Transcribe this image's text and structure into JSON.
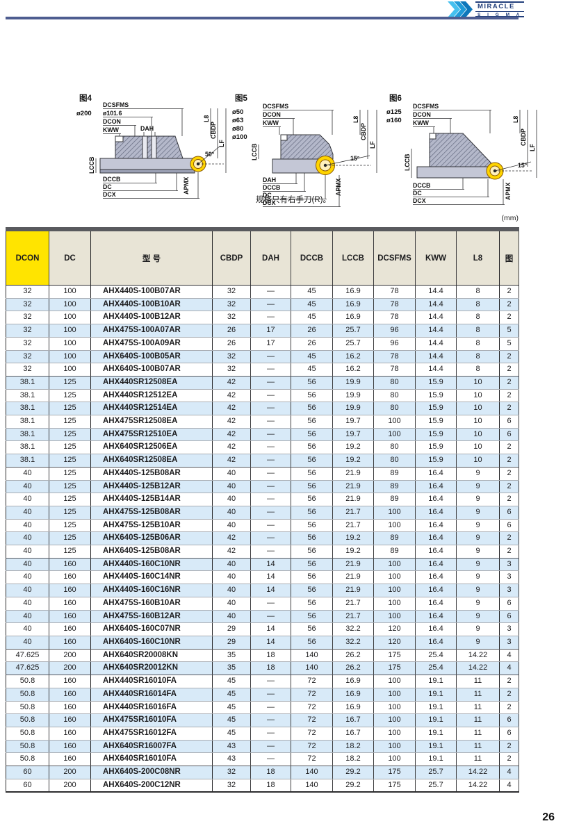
{
  "logo": {
    "name": "MIRACLE",
    "sub": "S I G M A"
  },
  "unit_note": "(mm)",
  "page_number": "26",
  "colors": {
    "header_yellow": "#ffe400",
    "header_beige": "#e8e4d6",
    "row_alt_blue": "#d8eaf8",
    "table_top_bar": "#595a5e",
    "rule_blue": "#4e5d90",
    "logo_blue": "#23407c",
    "insert_yellow": "#ffd400"
  },
  "figures": [
    {
      "title": "图4",
      "diameters": [
        "ø200"
      ],
      "top": [
        "DCSFMS",
        "ø101.6",
        "DCON",
        "KWW"
      ],
      "dah": "DAH",
      "right": [
        "L8",
        "CBDP",
        "LF"
      ],
      "lccb": "LCCB",
      "bottom": [
        "DCCB",
        "DC",
        "DCX"
      ],
      "apmx": "APMX",
      "angle": "50°"
    },
    {
      "title": "图5",
      "diameters": [
        "ø50",
        "ø63",
        "ø80",
        "ø100"
      ],
      "top": [
        "DCSFMS",
        "DCON",
        "KWW"
      ],
      "right": [
        "L8",
        "CBDP",
        "LF"
      ],
      "lccb": "LCCB",
      "bottom": [
        "DAH",
        "DCCB",
        "DC",
        "DCX"
      ],
      "apmx": "APMX",
      "angle": "15°",
      "note": "规格只有右手刀(R)。"
    },
    {
      "title": "图6",
      "diameters": [
        "ø125",
        "ø160"
      ],
      "top": [
        "DCSFMS",
        "DCON",
        "KWW"
      ],
      "right": [
        "L8",
        "CBDP",
        "LF"
      ],
      "lccb": "LCCB",
      "bottom": [
        "DCCB",
        "DC",
        "DCX"
      ],
      "apmx": "APMX",
      "angle": "15°"
    }
  ],
  "table": {
    "headers": [
      "DCON",
      "DC",
      "型 号",
      "CBDP",
      "DAH",
      "DCCB",
      "LCCB",
      "DCSFMS",
      "KWW",
      "L8",
      "图"
    ],
    "group_breaks_after": [
      7,
      14,
      21,
      28,
      30,
      37
    ],
    "rows": [
      [
        "32",
        "100",
        "AHX440S-100B07AR",
        "32",
        "—",
        "45",
        "16.9",
        "78",
        "14.4",
        "8",
        "2"
      ],
      [
        "32",
        "100",
        "AHX440S-100B10AR",
        "32",
        "—",
        "45",
        "16.9",
        "78",
        "14.4",
        "8",
        "2"
      ],
      [
        "32",
        "100",
        "AHX440S-100B12AR",
        "32",
        "—",
        "45",
        "16.9",
        "78",
        "14.4",
        "8",
        "2"
      ],
      [
        "32",
        "100",
        "AHX475S-100A07AR",
        "26",
        "17",
        "26",
        "25.7",
        "96",
        "14.4",
        "8",
        "5"
      ],
      [
        "32",
        "100",
        "AHX475S-100A09AR",
        "26",
        "17",
        "26",
        "25.7",
        "96",
        "14.4",
        "8",
        "5"
      ],
      [
        "32",
        "100",
        "AHX640S-100B05AR",
        "32",
        "—",
        "45",
        "16.2",
        "78",
        "14.4",
        "8",
        "2"
      ],
      [
        "32",
        "100",
        "AHX640S-100B07AR",
        "32",
        "—",
        "45",
        "16.2",
        "78",
        "14.4",
        "8",
        "2"
      ],
      [
        "38.1",
        "125",
        "AHX440SR12508EA",
        "42",
        "—",
        "56",
        "19.9",
        "80",
        "15.9",
        "10",
        "2"
      ],
      [
        "38.1",
        "125",
        "AHX440SR12512EA",
        "42",
        "—",
        "56",
        "19.9",
        "80",
        "15.9",
        "10",
        "2"
      ],
      [
        "38.1",
        "125",
        "AHX440SR12514EA",
        "42",
        "—",
        "56",
        "19.9",
        "80",
        "15.9",
        "10",
        "2"
      ],
      [
        "38.1",
        "125",
        "AHX475SR12508EA",
        "42",
        "—",
        "56",
        "19.7",
        "100",
        "15.9",
        "10",
        "6"
      ],
      [
        "38.1",
        "125",
        "AHX475SR12510EA",
        "42",
        "—",
        "56",
        "19.7",
        "100",
        "15.9",
        "10",
        "6"
      ],
      [
        "38.1",
        "125",
        "AHX640SR12506EA",
        "42",
        "—",
        "56",
        "19.2",
        "80",
        "15.9",
        "10",
        "2"
      ],
      [
        "38.1",
        "125",
        "AHX640SR12508EA",
        "42",
        "—",
        "56",
        "19.2",
        "80",
        "15.9",
        "10",
        "2"
      ],
      [
        "40",
        "125",
        "AHX440S-125B08AR",
        "40",
        "—",
        "56",
        "21.9",
        "89",
        "16.4",
        "9",
        "2"
      ],
      [
        "40",
        "125",
        "AHX440S-125B12AR",
        "40",
        "—",
        "56",
        "21.9",
        "89",
        "16.4",
        "9",
        "2"
      ],
      [
        "40",
        "125",
        "AHX440S-125B14AR",
        "40",
        "—",
        "56",
        "21.9",
        "89",
        "16.4",
        "9",
        "2"
      ],
      [
        "40",
        "125",
        "AHX475S-125B08AR",
        "40",
        "—",
        "56",
        "21.7",
        "100",
        "16.4",
        "9",
        "6"
      ],
      [
        "40",
        "125",
        "AHX475S-125B10AR",
        "40",
        "—",
        "56",
        "21.7",
        "100",
        "16.4",
        "9",
        "6"
      ],
      [
        "40",
        "125",
        "AHX640S-125B06AR",
        "42",
        "—",
        "56",
        "19.2",
        "89",
        "16.4",
        "9",
        "2"
      ],
      [
        "40",
        "125",
        "AHX640S-125B08AR",
        "42",
        "—",
        "56",
        "19.2",
        "89",
        "16.4",
        "9",
        "2"
      ],
      [
        "40",
        "160",
        "AHX440S-160C10NR",
        "40",
        "14",
        "56",
        "21.9",
        "100",
        "16.4",
        "9",
        "3"
      ],
      [
        "40",
        "160",
        "AHX440S-160C14NR",
        "40",
        "14",
        "56",
        "21.9",
        "100",
        "16.4",
        "9",
        "3"
      ],
      [
        "40",
        "160",
        "AHX440S-160C16NR",
        "40",
        "14",
        "56",
        "21.9",
        "100",
        "16.4",
        "9",
        "3"
      ],
      [
        "40",
        "160",
        "AHX475S-160B10AR",
        "40",
        "—",
        "56",
        "21.7",
        "100",
        "16.4",
        "9",
        "6"
      ],
      [
        "40",
        "160",
        "AHX475S-160B12AR",
        "40",
        "—",
        "56",
        "21.7",
        "100",
        "16.4",
        "9",
        "6"
      ],
      [
        "40",
        "160",
        "AHX640S-160C07NR",
        "29",
        "14",
        "56",
        "32.2",
        "120",
        "16.4",
        "9",
        "3"
      ],
      [
        "40",
        "160",
        "AHX640S-160C10NR",
        "29",
        "14",
        "56",
        "32.2",
        "120",
        "16.4",
        "9",
        "3"
      ],
      [
        "47.625",
        "200",
        "AHX640SR20008KN",
        "35",
        "18",
        "140",
        "26.2",
        "175",
        "25.4",
        "14.22",
        "4"
      ],
      [
        "47.625",
        "200",
        "AHX640SR20012KN",
        "35",
        "18",
        "140",
        "26.2",
        "175",
        "25.4",
        "14.22",
        "4"
      ],
      [
        "50.8",
        "160",
        "AHX440SR16010FA",
        "45",
        "—",
        "72",
        "16.9",
        "100",
        "19.1",
        "11",
        "2"
      ],
      [
        "50.8",
        "160",
        "AHX440SR16014FA",
        "45",
        "—",
        "72",
        "16.9",
        "100",
        "19.1",
        "11",
        "2"
      ],
      [
        "50.8",
        "160",
        "AHX440SR16016FA",
        "45",
        "—",
        "72",
        "16.9",
        "100",
        "19.1",
        "11",
        "2"
      ],
      [
        "50.8",
        "160",
        "AHX475SR16010FA",
        "45",
        "—",
        "72",
        "16.7",
        "100",
        "19.1",
        "11",
        "6"
      ],
      [
        "50.8",
        "160",
        "AHX475SR16012FA",
        "45",
        "—",
        "72",
        "16.7",
        "100",
        "19.1",
        "11",
        "6"
      ],
      [
        "50.8",
        "160",
        "AHX640SR16007FA",
        "43",
        "—",
        "72",
        "18.2",
        "100",
        "19.1",
        "11",
        "2"
      ],
      [
        "50.8",
        "160",
        "AHX640SR16010FA",
        "43",
        "—",
        "72",
        "18.2",
        "100",
        "19.1",
        "11",
        "2"
      ],
      [
        "60",
        "200",
        "AHX640S-200C08NR",
        "32",
        "18",
        "140",
        "29.2",
        "175",
        "25.7",
        "14.22",
        "4"
      ],
      [
        "60",
        "200",
        "AHX640S-200C12NR",
        "32",
        "18",
        "140",
        "29.2",
        "175",
        "25.7",
        "14.22",
        "4"
      ]
    ]
  }
}
